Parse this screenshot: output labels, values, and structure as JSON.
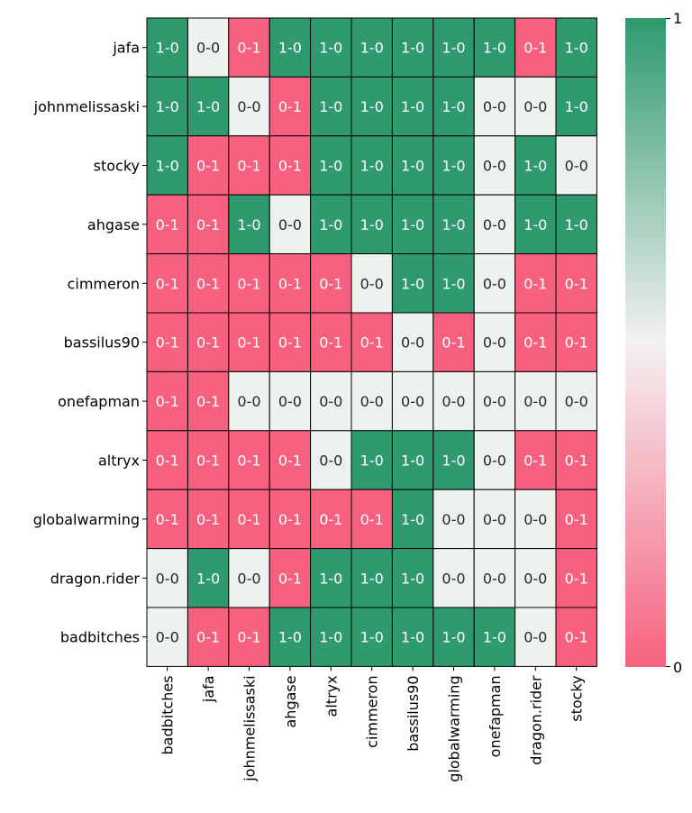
{
  "chart_data": {
    "type": "heatmap",
    "title": "",
    "xlabel": "",
    "ylabel": "",
    "rows": [
      "jafa",
      "johnmelissaski",
      "stocky",
      "ahgase",
      "cimmeron",
      "bassilus90",
      "onefapman",
      "altryx",
      "globalwarming",
      "dragon.rider",
      "badbitches"
    ],
    "columns": [
      "badbitches",
      "jafa",
      "johnmelissaski",
      "ahgase",
      "altryx",
      "cimmeron",
      "bassilus90",
      "globalwarming",
      "onefapman",
      "dragon.rider",
      "stocky"
    ],
    "cells": [
      [
        "1-0",
        "0-0",
        "0-1",
        "1-0",
        "1-0",
        "1-0",
        "1-0",
        "1-0",
        "1-0",
        "0-1",
        "1-0"
      ],
      [
        "1-0",
        "1-0",
        "0-0",
        "0-1",
        "1-0",
        "1-0",
        "1-0",
        "1-0",
        "0-0",
        "0-0",
        "1-0"
      ],
      [
        "1-0",
        "0-1",
        "0-1",
        "0-1",
        "1-0",
        "1-0",
        "1-0",
        "1-0",
        "0-0",
        "1-0",
        "0-0"
      ],
      [
        "0-1",
        "0-1",
        "1-0",
        "0-0",
        "1-0",
        "1-0",
        "1-0",
        "1-0",
        "0-0",
        "1-0",
        "1-0"
      ],
      [
        "0-1",
        "0-1",
        "0-1",
        "0-1",
        "0-1",
        "0-0",
        "1-0",
        "1-0",
        "0-0",
        "0-1",
        "0-1"
      ],
      [
        "0-1",
        "0-1",
        "0-1",
        "0-1",
        "0-1",
        "0-1",
        "0-0",
        "0-1",
        "0-0",
        "0-1",
        "0-1"
      ],
      [
        "0-1",
        "0-1",
        "0-0",
        "0-0",
        "0-0",
        "0-0",
        "0-0",
        "0-0",
        "0-0",
        "0-0",
        "0-0"
      ],
      [
        "0-1",
        "0-1",
        "0-1",
        "0-1",
        "0-0",
        "1-0",
        "1-0",
        "1-0",
        "0-0",
        "0-1",
        "0-1"
      ],
      [
        "0-1",
        "0-1",
        "0-1",
        "0-1",
        "0-1",
        "0-1",
        "1-0",
        "0-0",
        "0-0",
        "0-0",
        "0-1"
      ],
      [
        "0-0",
        "1-0",
        "0-0",
        "0-1",
        "1-0",
        "1-0",
        "1-0",
        "0-0",
        "0-0",
        "0-0",
        "0-1"
      ],
      [
        "0-0",
        "0-1",
        "0-1",
        "1-0",
        "1-0",
        "1-0",
        "1-0",
        "1-0",
        "1-0",
        "0-0",
        "0-1"
      ]
    ],
    "value_map": {
      "1-0": 1,
      "0-0": 0.5,
      "0-1": 0
    },
    "colorbar": {
      "min": 0,
      "max": 1,
      "ticks": [
        "0",
        "1"
      ],
      "position": "right"
    },
    "colors": {
      "high": "#2e9a6e",
      "mid": "#eef2ee",
      "low": "#f7617f",
      "grid": "#000000"
    },
    "grid": true,
    "legend": "colorbar right"
  }
}
